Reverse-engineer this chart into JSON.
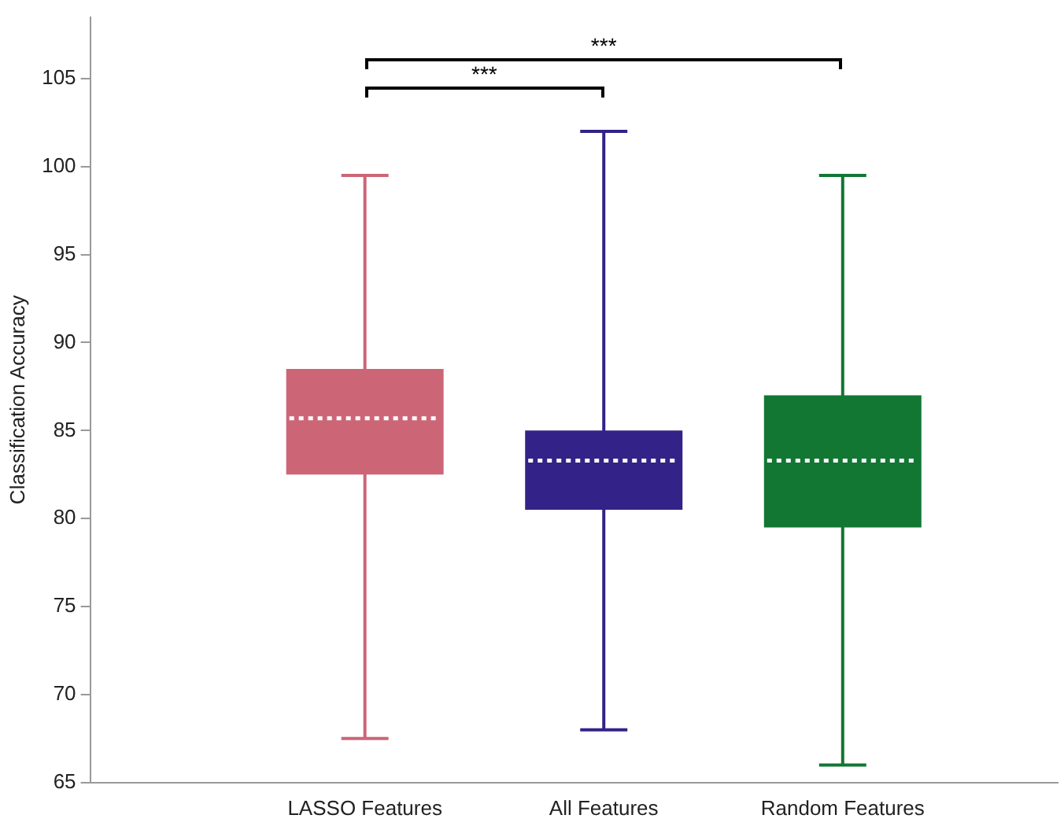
{
  "chart_data": {
    "type": "box",
    "ylabel": "Classification Accuracy",
    "categories": [
      "LASSO Features",
      "All Features",
      "Random Features"
    ],
    "colors": [
      "#cc6677",
      "#332288",
      "#117733"
    ],
    "boxes": [
      {
        "low": 67.5,
        "q1": 82.5,
        "median": 85.7,
        "q3": 88.5,
        "high": 99.5
      },
      {
        "low": 68,
        "q1": 80.5,
        "median": 83.3,
        "q3": 85,
        "high": 102
      },
      {
        "low": 66,
        "q1": 79.5,
        "median": 83.3,
        "q3": 87,
        "high": 99.5
      }
    ],
    "ylim": [
      65,
      108.5
    ],
    "yticks": [
      65,
      70,
      75,
      80,
      85,
      90,
      95,
      100,
      105
    ],
    "grid": false,
    "legend": false,
    "annotations": [
      "***",
      "***"
    ]
  }
}
